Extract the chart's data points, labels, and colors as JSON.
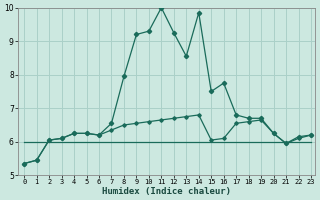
{
  "xlabel": "Humidex (Indice chaleur)",
  "xlim": [
    -0.5,
    23.3
  ],
  "ylim": [
    5,
    10
  ],
  "yticks": [
    5,
    6,
    7,
    8,
    9,
    10
  ],
  "xticks": [
    0,
    1,
    2,
    3,
    4,
    5,
    6,
    7,
    8,
    9,
    10,
    11,
    12,
    13,
    14,
    15,
    16,
    17,
    18,
    19,
    20,
    21,
    22,
    23
  ],
  "bg_color": "#cce8e0",
  "grid_color": "#aad0c8",
  "line_color": "#1a6b5a",
  "series1_x": [
    0,
    1,
    2,
    3,
    4,
    5,
    6,
    7,
    8,
    9,
    10,
    11,
    12,
    13,
    14,
    15,
    16,
    17,
    18,
    19,
    20,
    21,
    22,
    23
  ],
  "series1_y": [
    5.35,
    5.45,
    6.05,
    6.1,
    6.25,
    6.25,
    6.2,
    6.55,
    7.95,
    9.2,
    9.3,
    10.0,
    9.25,
    8.55,
    9.85,
    7.5,
    7.75,
    6.8,
    6.7,
    6.7,
    6.25,
    5.95,
    6.15,
    6.2
  ],
  "series2_x": [
    0,
    1,
    2,
    3,
    4,
    5,
    6,
    7,
    8,
    9,
    10,
    11,
    12,
    13,
    14,
    15,
    16,
    17,
    18,
    19,
    20,
    21,
    22,
    23
  ],
  "series2_y": [
    5.35,
    5.45,
    6.05,
    6.1,
    6.25,
    6.25,
    6.2,
    6.35,
    6.5,
    6.55,
    6.6,
    6.65,
    6.7,
    6.75,
    6.8,
    6.05,
    6.1,
    6.55,
    6.6,
    6.65,
    6.25,
    5.95,
    6.1,
    6.2
  ],
  "series3_x": [
    0,
    23
  ],
  "series3_y": [
    6.0,
    6.0
  ]
}
